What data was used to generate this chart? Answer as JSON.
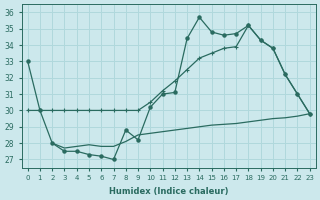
{
  "xlabel": "Humidex (Indice chaleur)",
  "bg_color": "#cce8ec",
  "grid_color": "#b0d8dc",
  "line_color": "#2a6b60",
  "xlim": [
    -0.5,
    23.5
  ],
  "ylim": [
    26.5,
    36.5
  ],
  "xticks": [
    0,
    1,
    2,
    3,
    4,
    5,
    6,
    7,
    8,
    9,
    10,
    11,
    12,
    13,
    14,
    15,
    16,
    17,
    18,
    19,
    20,
    21,
    22,
    23
  ],
  "yticks": [
    27,
    28,
    29,
    30,
    31,
    32,
    33,
    34,
    35,
    36
  ],
  "line1_x": [
    0,
    1,
    2,
    3,
    4,
    5,
    6,
    7,
    8,
    9,
    10,
    11,
    12,
    13,
    14,
    15,
    16,
    17,
    18,
    19,
    20,
    21,
    22,
    23
  ],
  "line1_y": [
    33,
    30,
    28,
    27.5,
    27.5,
    27.3,
    27.2,
    27.0,
    28.8,
    28.2,
    30.2,
    31.0,
    31.1,
    34.4,
    35.7,
    34.8,
    34.6,
    34.7,
    35.2,
    34.3,
    33.8,
    32.2,
    31.0,
    29.8
  ],
  "line2_x": [
    0,
    1,
    2,
    3,
    4,
    5,
    6,
    7,
    8,
    9,
    10,
    11,
    12,
    13,
    14,
    15,
    16,
    17,
    18,
    19,
    20,
    21,
    22,
    23
  ],
  "line2_y": [
    30,
    30,
    30,
    30,
    30,
    30,
    30,
    30,
    30,
    30,
    30.5,
    31.2,
    31.8,
    32.5,
    33.2,
    33.5,
    33.8,
    33.9,
    35.2,
    34.3,
    33.8,
    32.2,
    31.0,
    29.8
  ],
  "line3_x": [
    2,
    3,
    4,
    5,
    6,
    7,
    8,
    9,
    10,
    11,
    12,
    13,
    14,
    15,
    16,
    17,
    18,
    19,
    20,
    21,
    22,
    23
  ],
  "line3_y": [
    28.0,
    27.7,
    27.8,
    27.9,
    27.8,
    27.8,
    28.1,
    28.5,
    28.6,
    28.7,
    28.8,
    28.9,
    29.0,
    29.1,
    29.15,
    29.2,
    29.3,
    29.4,
    29.5,
    29.55,
    29.65,
    29.8
  ]
}
